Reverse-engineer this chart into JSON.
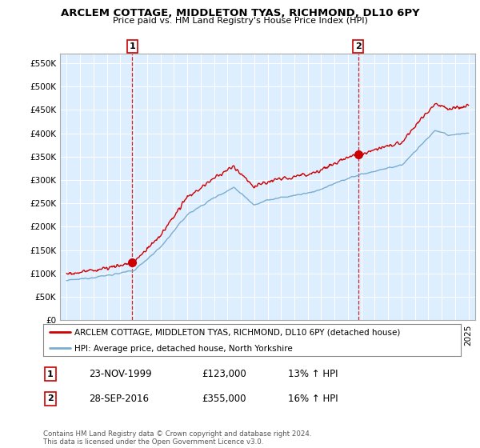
{
  "title": "ARCLEM COTTAGE, MIDDLETON TYAS, RICHMOND, DL10 6PY",
  "subtitle": "Price paid vs. HM Land Registry's House Price Index (HPI)",
  "legend_line1": "ARCLEM COTTAGE, MIDDLETON TYAS, RICHMOND, DL10 6PY (detached house)",
  "legend_line2": "HPI: Average price, detached house, North Yorkshire",
  "annotation1_date": "23-NOV-1999",
  "annotation1_price": "£123,000",
  "annotation1_hpi": "13% ↑ HPI",
  "annotation2_date": "28-SEP-2016",
  "annotation2_price": "£355,000",
  "annotation2_hpi": "16% ↑ HPI",
  "footer": "Contains HM Land Registry data © Crown copyright and database right 2024.\nThis data is licensed under the Open Government Licence v3.0.",
  "red_color": "#cc0000",
  "blue_color": "#7aadcf",
  "chart_bg": "#ddeeff",
  "ylim": [
    0,
    570000
  ],
  "yticks": [
    0,
    50000,
    100000,
    150000,
    200000,
    250000,
    300000,
    350000,
    400000,
    450000,
    500000,
    550000
  ],
  "background_color": "#ffffff",
  "grid_color": "#ffffff",
  "sale1_year": 1999.9,
  "sale1_price": 123000,
  "sale2_year": 2016.75,
  "sale2_price": 355000
}
